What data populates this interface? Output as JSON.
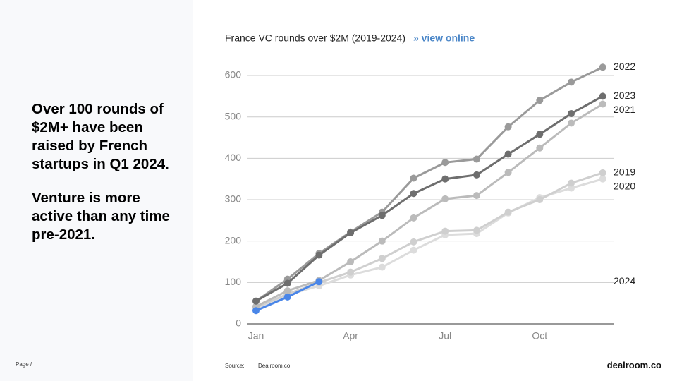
{
  "panel": {
    "paragraphs": [
      "Over 100 rounds of $2M+ have been raised by French startups in Q1 2024.",
      "Venture is more active than any time pre-2021."
    ]
  },
  "chart_data": {
    "type": "line",
    "title": "France VC rounds over $2M (2019-2024)",
    "link": "» view online",
    "categories": [
      "Jan",
      null,
      null,
      "Apr",
      null,
      null,
      "Jul",
      null,
      null,
      "Oct",
      null,
      null
    ],
    "series": [
      {
        "name": "2020",
        "color": "#dcdcdc",
        "values": [
          38,
          70,
          92,
          118,
          137,
          178,
          215,
          218,
          268,
          305,
          328,
          350
        ]
      },
      {
        "name": "2019",
        "color": "#cfcfcf",
        "values": [
          40,
          72,
          100,
          125,
          158,
          198,
          224,
          226,
          270,
          300,
          340,
          365
        ]
      },
      {
        "name": "2021",
        "color": "#bbbbbb",
        "values": [
          42,
          80,
          105,
          150,
          200,
          256,
          302,
          310,
          366,
          425,
          485,
          531
        ]
      },
      {
        "name": "2022",
        "color": "#9a9a9a",
        "values": [
          55,
          108,
          170,
          222,
          270,
          352,
          390,
          398,
          476,
          540,
          584,
          620
        ]
      },
      {
        "name": "2023",
        "color": "#6e6e6e",
        "values": [
          55,
          98,
          166,
          220,
          262,
          315,
          350,
          360,
          410,
          458,
          508,
          550
        ]
      },
      {
        "name": "2024",
        "color": "#4a86e8",
        "values": [
          32,
          65,
          102,
          null,
          null,
          null,
          null,
          null,
          null,
          null,
          null,
          null
        ]
      }
    ],
    "ylim": [
      0,
      620
    ],
    "yticks": [
      0,
      100,
      200,
      300,
      400,
      500,
      600
    ],
    "grid": true
  },
  "footer": {
    "page": "Page /",
    "source_label": "Source:",
    "source": "Dealroom.co",
    "logo": "dealroom.co"
  }
}
